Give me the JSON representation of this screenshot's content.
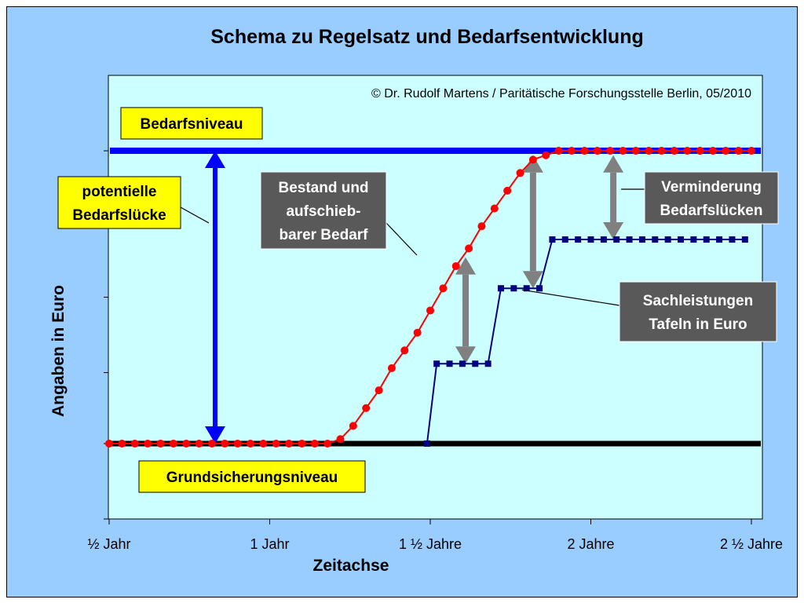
{
  "chart_data": {
    "type": "line",
    "title": "Schema zu Regelsatz und Bedarfsentwicklung",
    "copyright": "© Dr. Rudolf Martens / Paritätische Forschungsstelle Berlin, 05/2010",
    "xlabel": "Zeitachse",
    "ylabel": "Angaben in Euro",
    "x_ticks": [
      "½ Jahr",
      "1 Jahr",
      "1 ½ Jahre",
      "2 Jahre",
      "2 ½ Jahre"
    ],
    "x_range": [
      0.5,
      2.5
    ],
    "y_range": [
      0,
      100
    ],
    "grid": false,
    "legend": "none",
    "reference_lines": {
      "bedarfsniveau": {
        "label": "Bedarfsniveau",
        "y": 83,
        "color": "#0000ff"
      },
      "grundsicherung": {
        "label": "Grundsicherungsniveau",
        "y": 17,
        "color": "#000000"
      }
    },
    "series": [
      {
        "color": "#ff0000",
        "marker": "circle",
        "x": [
          0.5,
          0.54,
          0.58,
          0.62,
          0.66,
          0.7,
          0.74,
          0.78,
          0.82,
          0.86,
          0.9,
          0.94,
          0.98,
          1.02,
          1.06,
          1.1,
          1.14,
          1.18,
          1.22,
          1.26,
          1.3,
          1.34,
          1.38,
          1.42,
          1.46,
          1.5,
          1.54,
          1.58,
          1.62,
          1.66,
          1.7,
          1.74,
          1.78,
          1.82,
          1.86,
          1.9,
          1.94,
          1.98,
          2.02,
          2.06,
          2.1,
          2.14,
          2.18,
          2.22,
          2.26,
          2.3,
          2.34,
          2.38,
          2.42,
          2.46,
          2.5
        ],
        "values": [
          17,
          17,
          17,
          17,
          17,
          17,
          17,
          17,
          17,
          17,
          17,
          17,
          17,
          17,
          17,
          17,
          17,
          17,
          18,
          21,
          25,
          29,
          34,
          38,
          42,
          47,
          52,
          57,
          61,
          66,
          70,
          74,
          78,
          81,
          82,
          83,
          83,
          83,
          83,
          83,
          83,
          83,
          83,
          83,
          83,
          83,
          83,
          83,
          83,
          83,
          83
        ]
      },
      {
        "color": "#000080",
        "marker": "square",
        "x": [
          1.49,
          1.52,
          1.56,
          1.6,
          1.64,
          1.68,
          1.72,
          1.76,
          1.8,
          1.84,
          1.88,
          1.92,
          1.96,
          2.0,
          2.04,
          2.08,
          2.12,
          2.16,
          2.2,
          2.24,
          2.28,
          2.32,
          2.36,
          2.4,
          2.44,
          2.48
        ],
        "values": [
          17,
          35,
          35,
          35,
          35,
          35,
          52,
          52,
          52,
          52,
          63,
          63,
          63,
          63,
          63,
          63,
          63,
          63,
          63,
          63,
          63,
          63,
          63,
          63,
          63,
          63
        ]
      }
    ],
    "annotations": [
      {
        "label": "potentielle Bedarfslücke",
        "lines": [
          "potentielle",
          "Bedarfslücke"
        ],
        "style": "yellow",
        "points_to": {
          "x": 0.83,
          "y": 50
        }
      },
      {
        "label": "Bestand und aufschieb-barer Bedarf",
        "lines": [
          "Bestand und",
          "aufschieb-",
          "barer Bedarf"
        ],
        "style": "gray",
        "points_to": {
          "x": 1.46,
          "y": 45
        }
      },
      {
        "label": "Verminderung Bedarfslücken",
        "lines": [
          "Verminderung",
          "Bedarfslücken"
        ],
        "style": "gray",
        "points_to": {
          "x": 2.07,
          "y": 73
        }
      },
      {
        "label": "Sachleistungen Tafeln in Euro",
        "lines": [
          "Sachleistungen",
          "Tafeln in Euro"
        ],
        "style": "gray",
        "points_to": {
          "x": 1.82,
          "y": 52
        }
      }
    ],
    "double_arrows": [
      {
        "color": "#0000ff",
        "x": 0.83,
        "y_from": 17,
        "y_to": 83
      },
      {
        "color": "#808080",
        "x": 1.61,
        "y_from": 35,
        "y_to": 59
      },
      {
        "color": "#808080",
        "x": 1.82,
        "y_from": 52,
        "y_to": 82
      },
      {
        "color": "#808080",
        "x": 2.07,
        "y_from": 63,
        "y_to": 82
      }
    ]
  }
}
